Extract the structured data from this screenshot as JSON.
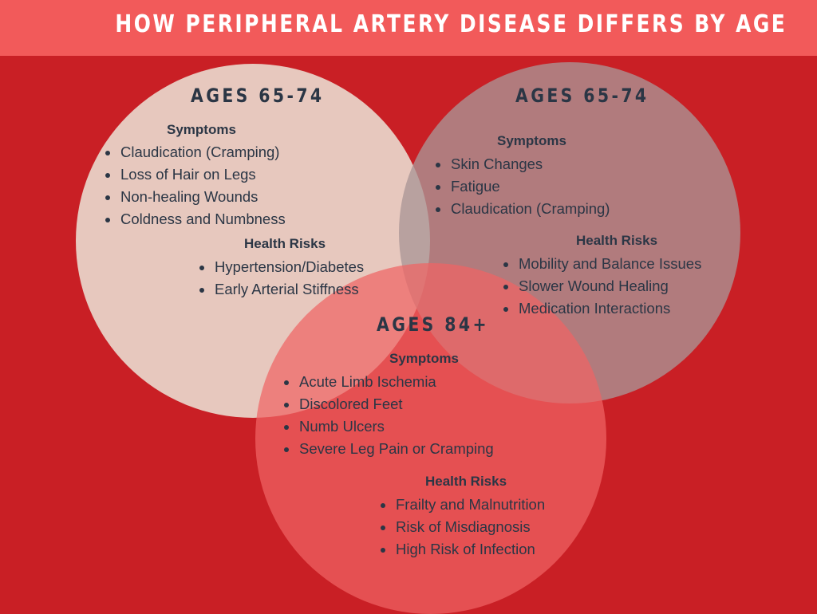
{
  "title": "HOW PERIPHERAL ARTERY DISEASE DIFFERS BY AGE",
  "groups": [
    {
      "heading": "AGES 65-74",
      "symptoms_label": "Symptoms",
      "symptoms": [
        "Claudication (Cramping)",
        "Loss of Hair on Legs",
        "Non-healing Wounds",
        "Coldness and Numbness"
      ],
      "risks_label": "Health Risks",
      "risks": [
        "Hypertension/Diabetes",
        "Early Arterial Stiffness"
      ],
      "color": "#e8ccc2"
    },
    {
      "heading": "AGES 65-74",
      "symptoms_label": "Symptoms",
      "symptoms": [
        "Skin Changes",
        "Fatigue",
        "Claudication (Cramping)"
      ],
      "risks_label": "Health Risks",
      "risks": [
        "Mobility and Balance Issues",
        "Slower Wound Healing",
        "Medication Interactions"
      ],
      "color": "#aa9696"
    },
    {
      "heading": "AGES 84+",
      "symptoms_label": "Symptoms",
      "symptoms": [
        "Acute Limb Ischemia",
        "Discolored Feet",
        "Numb Ulcers",
        "Severe Leg Pain or Cramping"
      ],
      "risks_label": "Health Risks",
      "risks": [
        "Frailty and Malnutrition",
        "Risk of Misdiagnosis",
        "High Risk of Infection"
      ],
      "color": "#f06464"
    }
  ],
  "colors": {
    "background": "#c91f25",
    "banner": "#f25a5a",
    "text": "#2b3645"
  }
}
